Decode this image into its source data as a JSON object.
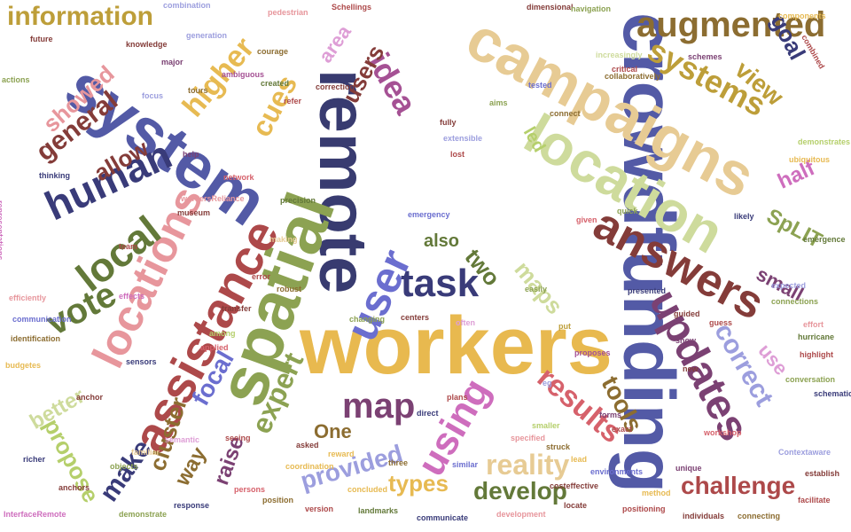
{
  "words": [
    {
      "text": "workers",
      "color": "#e8b94f"
    },
    {
      "text": "crowdfunding",
      "color": "#535aa6"
    },
    {
      "text": "remote",
      "color": "#383b70"
    },
    {
      "text": "system",
      "color": "#535aa6"
    },
    {
      "text": "campaigns",
      "color": "#e7cb94"
    },
    {
      "text": "spatial",
      "color": "#8ca252"
    },
    {
      "text": "location",
      "color": "#cedb9c"
    },
    {
      "text": "assistance",
      "color": "#ad494a"
    },
    {
      "text": "locations",
      "color": "#e7969c"
    },
    {
      "text": "answers",
      "color": "#843c39"
    },
    {
      "text": "updates",
      "color": "#7b4173"
    },
    {
      "text": "user",
      "color": "#6b6ecf"
    },
    {
      "text": "human",
      "color": "#393b79"
    },
    {
      "text": "local",
      "color": "#637939"
    },
    {
      "text": "augmented",
      "color": "#8c6d31"
    },
    {
      "text": "task",
      "color": "#393b79"
    },
    {
      "text": "using",
      "color": "#ce6dbd"
    },
    {
      "text": "map",
      "color": "#7b4173"
    },
    {
      "text": "systems",
      "color": "#bd9e39"
    },
    {
      "text": "vote",
      "color": "#637939"
    },
    {
      "text": "idea",
      "color": "#a55194"
    },
    {
      "text": "higher",
      "color": "#e7ba52"
    },
    {
      "text": "results",
      "color": "#d6616b"
    },
    {
      "text": "reality",
      "color": "#e7cb94"
    },
    {
      "text": "expert",
      "color": "#8ca252"
    },
    {
      "text": "correct",
      "color": "#9c9ede"
    },
    {
      "text": "information",
      "color": "#bd9e39"
    },
    {
      "text": "cues",
      "color": "#e7ba52"
    },
    {
      "text": "general",
      "color": "#843c39"
    },
    {
      "text": "make",
      "color": "#393b79"
    },
    {
      "text": "challenge",
      "color": "#ad494a"
    },
    {
      "text": "tools",
      "color": "#8c6d31"
    },
    {
      "text": "develop",
      "color": "#637939"
    },
    {
      "text": "provided",
      "color": "#9c9ede"
    },
    {
      "text": "focal",
      "color": "#6b6ecf"
    },
    {
      "text": "view",
      "color": "#bd9e39"
    },
    {
      "text": "users",
      "color": "#843c39"
    },
    {
      "text": "two",
      "color": "#637939"
    },
    {
      "text": "maps",
      "color": "#cedb9c"
    },
    {
      "text": "propose",
      "color": "#b5cf6b"
    },
    {
      "text": "cluster",
      "color": "#8c6d31"
    },
    {
      "text": "types",
      "color": "#e7ba52"
    },
    {
      "text": "goal",
      "color": "#393b79"
    },
    {
      "text": "showed",
      "color": "#e7969c"
    },
    {
      "text": "allow",
      "color": "#843c39"
    },
    {
      "text": "better",
      "color": "#cedb9c"
    },
    {
      "text": "way",
      "color": "#8c6d31"
    },
    {
      "text": "raise",
      "color": "#7b4173"
    },
    {
      "text": "half",
      "color": "#ce6dbd"
    },
    {
      "text": "SpLIT",
      "color": "#8ca252"
    },
    {
      "text": "small",
      "color": "#7b4173"
    },
    {
      "text": "use",
      "color": "#de9ed6"
    },
    {
      "text": "One",
      "color": "#8c6d31"
    },
    {
      "text": "also",
      "color": "#637939"
    },
    {
      "text": "area",
      "color": "#de9ed6"
    },
    {
      "text": "led",
      "color": "#b5cf6b"
    },
    {
      "text": "combination",
      "color": "#9c9ede"
    },
    {
      "text": "pedestrian",
      "color": "#e7969c"
    },
    {
      "text": "Schellings",
      "color": "#ad494a"
    },
    {
      "text": "dimensional",
      "color": "#843c39"
    },
    {
      "text": "navigation",
      "color": "#8ca252"
    },
    {
      "text": "collaboratively",
      "color": "#8c6d31"
    },
    {
      "text": "components",
      "color": "#e7ba52"
    },
    {
      "text": "combined",
      "color": "#ad494a"
    },
    {
      "text": "knowledge",
      "color": "#843c39"
    },
    {
      "text": "generation",
      "color": "#9c9ede"
    },
    {
      "text": "major",
      "color": "#7b4173"
    },
    {
      "text": "courage",
      "color": "#8c6d31"
    },
    {
      "text": "ambiguous",
      "color": "#a55194"
    },
    {
      "text": "created",
      "color": "#637939"
    },
    {
      "text": "refer",
      "color": "#ad494a"
    },
    {
      "text": "correction",
      "color": "#843c39"
    },
    {
      "text": "tested",
      "color": "#6b6ecf"
    },
    {
      "text": "increasingly",
      "color": "#cedb9c"
    },
    {
      "text": "schemes",
      "color": "#7b4173"
    },
    {
      "text": "critical",
      "color": "#ad494a"
    },
    {
      "text": "aims",
      "color": "#8ca252"
    },
    {
      "text": "connect",
      "color": "#8c6d31"
    },
    {
      "text": "extensible",
      "color": "#9c9ede"
    },
    {
      "text": "demonstrates",
      "color": "#b5cf6b"
    },
    {
      "text": "ubiquitous",
      "color": "#e7ba52"
    },
    {
      "text": "thinking",
      "color": "#393b79"
    },
    {
      "text": "workersReliance",
      "color": "#e7969c"
    },
    {
      "text": "museum",
      "color": "#843c39"
    },
    {
      "text": "network",
      "color": "#d6616b"
    },
    {
      "text": "precision",
      "color": "#637939"
    },
    {
      "text": "emergency",
      "color": "#6b6ecf"
    },
    {
      "text": "likely",
      "color": "#393b79"
    },
    {
      "text": "emergence",
      "color": "#637939"
    },
    {
      "text": "expected",
      "color": "#9c9ede"
    },
    {
      "text": "connections",
      "color": "#8ca252"
    },
    {
      "text": "representations",
      "color": "#ce6dbd"
    },
    {
      "text": "making",
      "color": "#e7cb94"
    },
    {
      "text": "error",
      "color": "#ad494a"
    },
    {
      "text": "transfer",
      "color": "#843c39"
    },
    {
      "text": "robust",
      "color": "#8c6d31"
    },
    {
      "text": "among",
      "color": "#b5cf6b"
    },
    {
      "text": "applied",
      "color": "#d6616b"
    },
    {
      "text": "sensors",
      "color": "#393b79"
    },
    {
      "text": "changing",
      "color": "#8ca252"
    },
    {
      "text": "centers",
      "color": "#843c39"
    },
    {
      "text": "often",
      "color": "#de9ed6"
    },
    {
      "text": "put",
      "color": "#bd9e39"
    },
    {
      "text": "guided",
      "color": "#843c39"
    },
    {
      "text": "guess",
      "color": "#ad494a"
    },
    {
      "text": "show",
      "color": "#7b4173"
    },
    {
      "text": "effort",
      "color": "#e7969c"
    },
    {
      "text": "hurricane",
      "color": "#637939"
    },
    {
      "text": "highlight",
      "color": "#ad494a"
    },
    {
      "text": "proposes",
      "color": "#a55194"
    },
    {
      "text": "presented",
      "color": "#393b79"
    },
    {
      "text": "efficiently",
      "color": "#e7969c"
    },
    {
      "text": "communication",
      "color": "#6b6ecf"
    },
    {
      "text": "identification",
      "color": "#8c6d31"
    },
    {
      "text": "budgetes",
      "color": "#e7ba52"
    },
    {
      "text": "anchor",
      "color": "#843c39"
    },
    {
      "text": "richer",
      "color": "#393b79"
    },
    {
      "text": "familiar",
      "color": "#e7cb94"
    },
    {
      "text": "objects",
      "color": "#8ca252"
    },
    {
      "text": "semantic",
      "color": "#de9ed6"
    },
    {
      "text": "seeing",
      "color": "#ad494a"
    },
    {
      "text": "asked",
      "color": "#843c39"
    },
    {
      "text": "coordination",
      "color": "#e7ba52"
    },
    {
      "text": "persons",
      "color": "#d6616b"
    },
    {
      "text": "position",
      "color": "#8c6d31"
    },
    {
      "text": "response",
      "color": "#393b79"
    },
    {
      "text": "demonstrate",
      "color": "#8ca252"
    },
    {
      "text": "anchors",
      "color": "#843c39"
    },
    {
      "text": "InterfaceRemote",
      "color": "#ce6dbd"
    },
    {
      "text": "version",
      "color": "#ad494a"
    },
    {
      "text": "landmarks",
      "color": "#637939"
    },
    {
      "text": "communicate",
      "color": "#393b79"
    },
    {
      "text": "three",
      "color": "#8c6d31"
    },
    {
      "text": "concluded",
      "color": "#e7ba52"
    },
    {
      "text": "similar",
      "color": "#6b6ecf"
    },
    {
      "text": "development",
      "color": "#e7969c"
    },
    {
      "text": "locate",
      "color": "#843c39"
    },
    {
      "text": "positioning",
      "color": "#ad494a"
    },
    {
      "text": "method",
      "color": "#e7ba52"
    },
    {
      "text": "individuals",
      "color": "#843c39"
    },
    {
      "text": "connecting",
      "color": "#8c6d31"
    },
    {
      "text": "unique",
      "color": "#7b4173"
    },
    {
      "text": "facilitate",
      "color": "#ad494a"
    },
    {
      "text": "establish",
      "color": "#843c39"
    },
    {
      "text": "workshop",
      "color": "#d6616b"
    },
    {
      "text": "Contextaware",
      "color": "#9c9ede"
    },
    {
      "text": "conversation",
      "color": "#8ca252"
    },
    {
      "text": "schematic",
      "color": "#393b79"
    },
    {
      "text": "smaller",
      "color": "#b5cf6b"
    },
    {
      "text": "forms",
      "color": "#7b4173"
    },
    {
      "text": "exact",
      "color": "#ad494a"
    },
    {
      "text": "specified",
      "color": "#e7969c"
    },
    {
      "text": "struck",
      "color": "#8c6d31"
    },
    {
      "text": "plans",
      "color": "#ad494a"
    },
    {
      "text": "direct",
      "color": "#393b79"
    },
    {
      "text": "reward",
      "color": "#e7ba52"
    },
    {
      "text": "future",
      "color": "#843c39"
    },
    {
      "text": "actions",
      "color": "#8ca252"
    },
    {
      "text": "team",
      "color": "#ad494a"
    },
    {
      "text": "help",
      "color": "#7b4173"
    },
    {
      "text": "fully",
      "color": "#843c39"
    },
    {
      "text": "lost",
      "color": "#ad494a"
    },
    {
      "text": "tours",
      "color": "#8c6d31"
    },
    {
      "text": "focus",
      "color": "#9c9ede"
    },
    {
      "text": "quick",
      "color": "#8ca252"
    },
    {
      "text": "given",
      "color": "#d6616b"
    },
    {
      "text": "effects",
      "color": "#ce6dbd"
    },
    {
      "text": "easily",
      "color": "#8ca252"
    },
    {
      "text": "new",
      "color": "#843c39"
    },
    {
      "text": "eg",
      "color": "#9c9ede"
    },
    {
      "text": "costeffective",
      "color": "#843c39"
    },
    {
      "text": "environments",
      "color": "#6b6ecf"
    },
    {
      "text": "lead",
      "color": "#e7ba52"
    }
  ]
}
